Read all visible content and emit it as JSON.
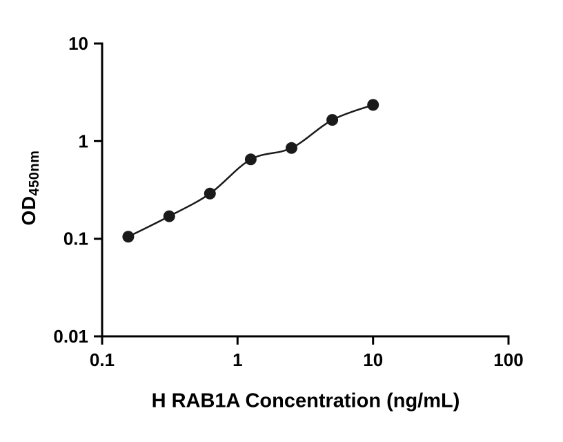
{
  "chart_data": {
    "type": "scatter",
    "title": "",
    "xlabel": "H RAB1A Concentration (ng/mL)",
    "ylabel_main": "OD",
    "ylabel_sub": "450nm",
    "xscale": "log",
    "yscale": "log",
    "xlim": [
      0.1,
      100
    ],
    "ylim": [
      0.01,
      10
    ],
    "grid": false,
    "legend": "none",
    "has_fit_curve": true,
    "x": [
      0.156,
      0.313,
      0.625,
      1.25,
      2.5,
      5,
      10
    ],
    "y": [
      0.105,
      0.17,
      0.29,
      0.65,
      0.85,
      1.65,
      2.35
    ],
    "x_ticks": [
      {
        "value": 0.1,
        "label": "0.1"
      },
      {
        "value": 1,
        "label": "1"
      },
      {
        "value": 10,
        "label": "10"
      },
      {
        "value": 100,
        "label": "100"
      }
    ],
    "y_ticks": [
      {
        "value": 0.01,
        "label": "0.01"
      },
      {
        "value": 0.1,
        "label": "0.1"
      },
      {
        "value": 1,
        "label": "1"
      },
      {
        "value": 10,
        "label": "10"
      }
    ],
    "colors": {
      "axis": "#000000",
      "marker": "#1a1a1a",
      "line": "#1a1a1a",
      "background": "#ffffff"
    }
  }
}
